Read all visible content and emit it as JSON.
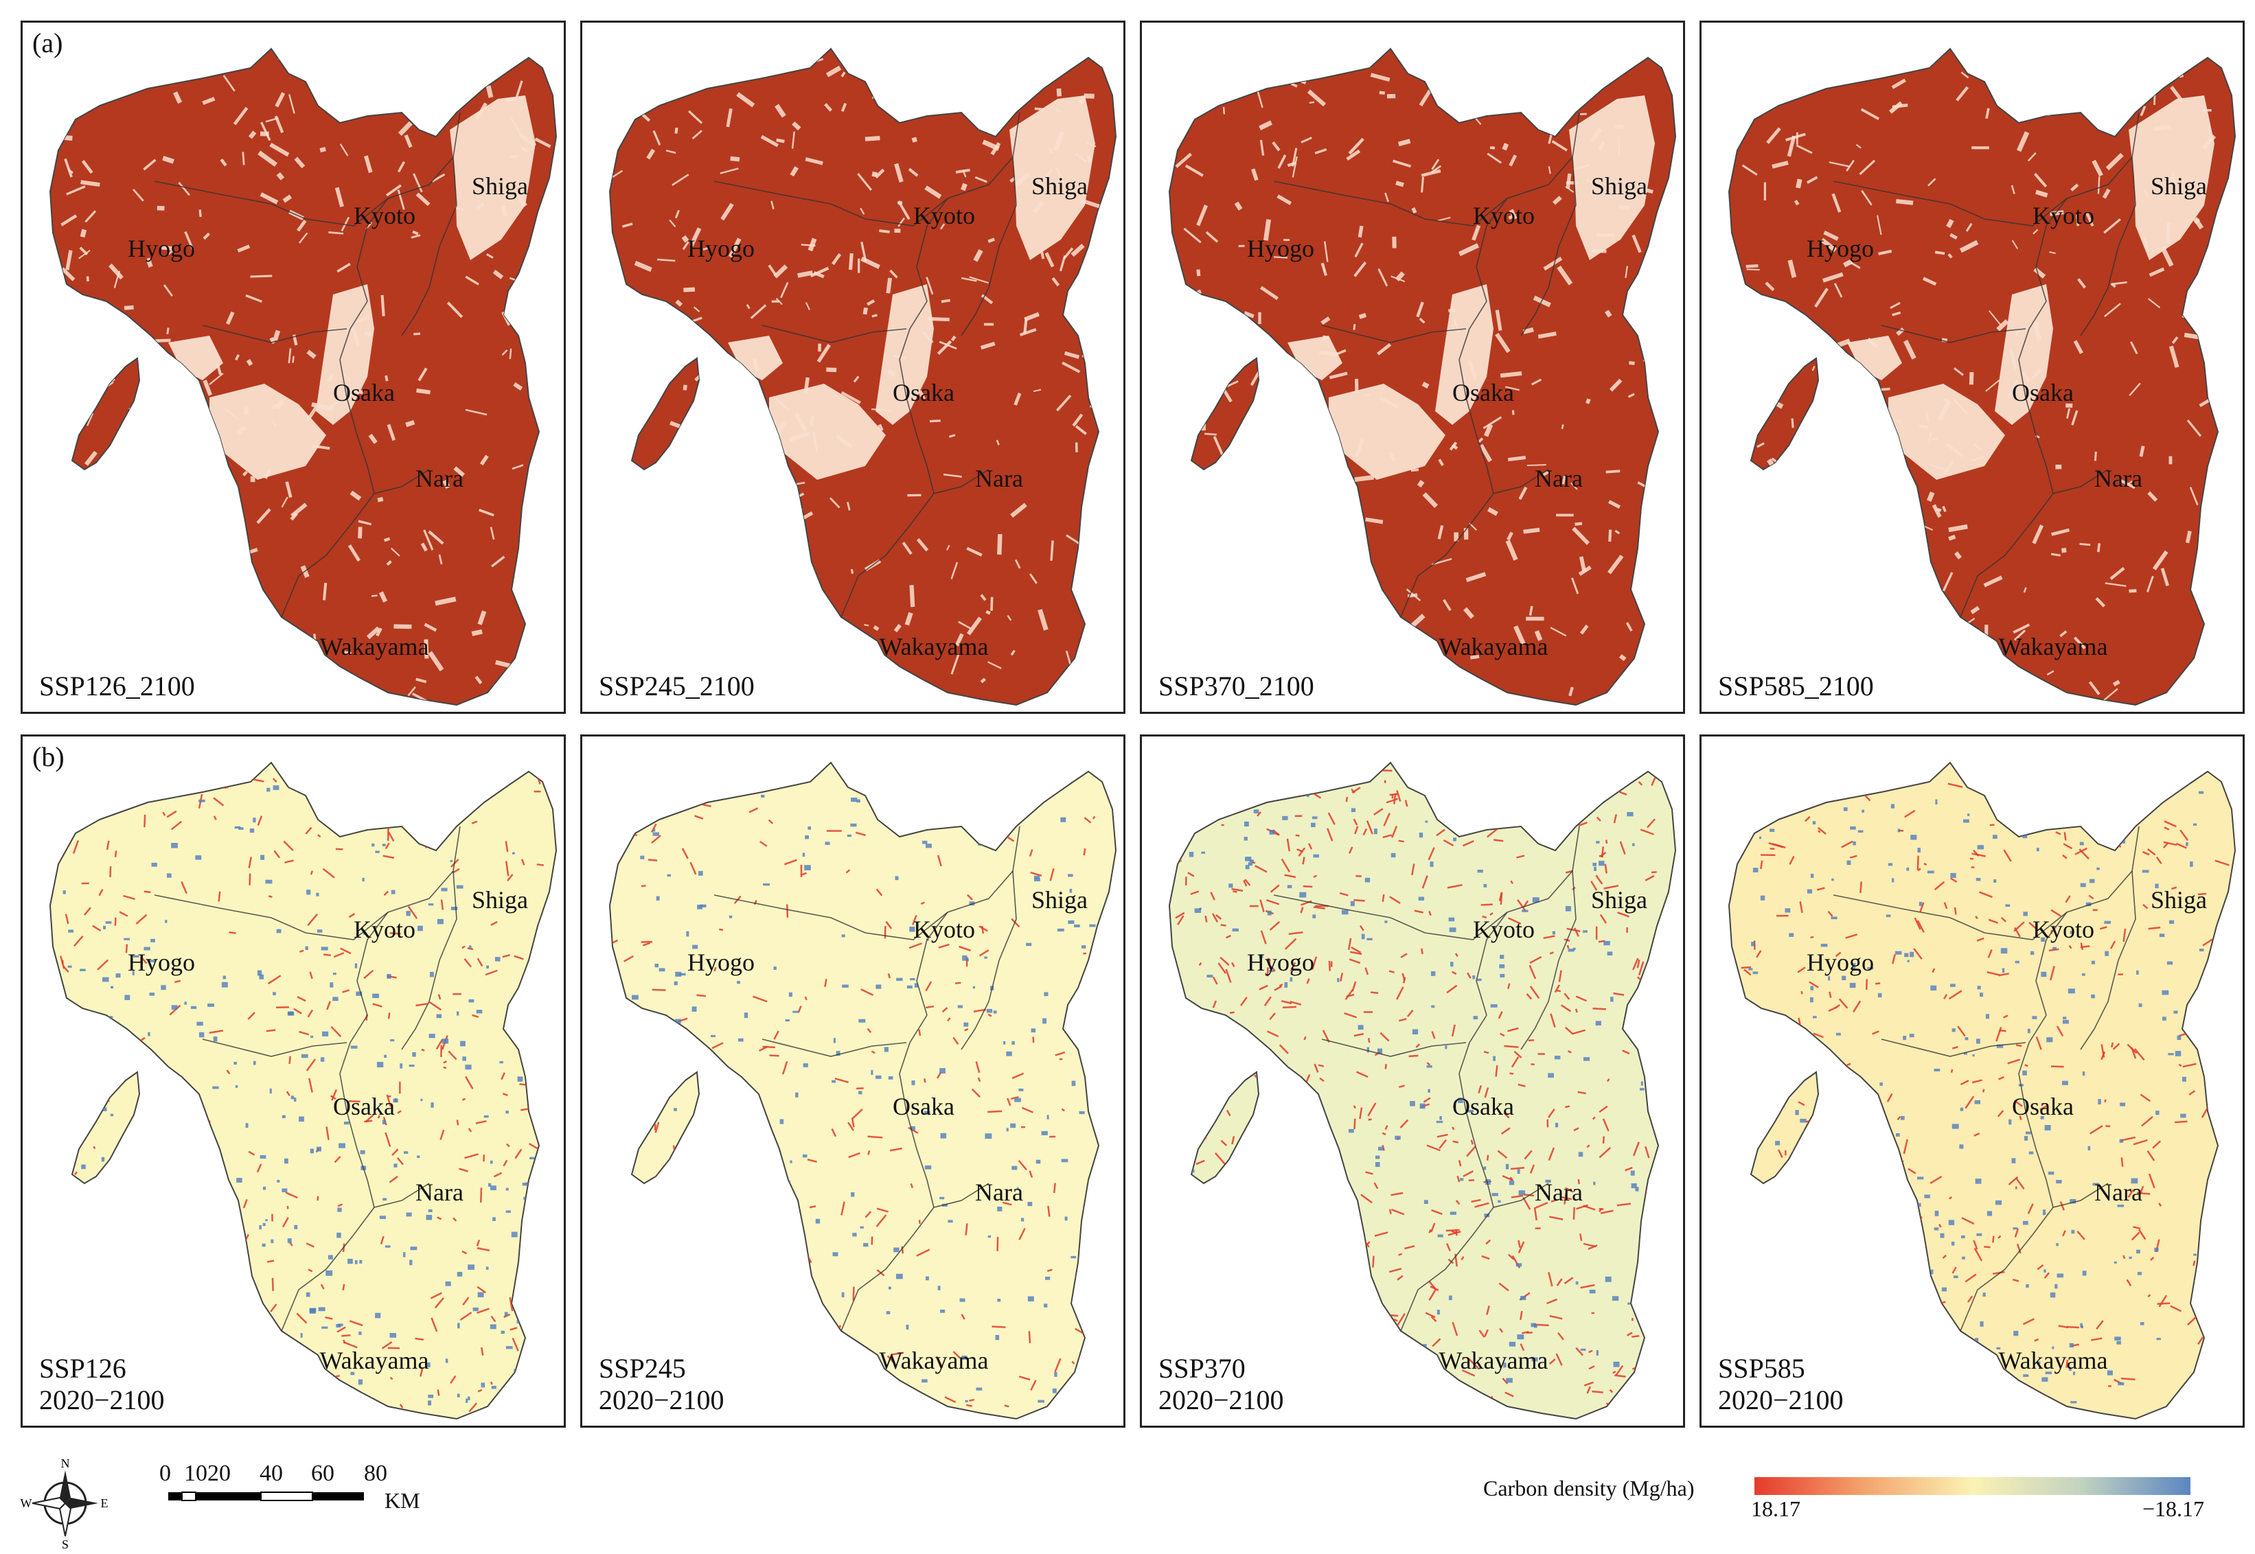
{
  "figure": {
    "panel_a_tag": "(a)",
    "panel_b_tag": "(b)",
    "regions": [
      "Shiga",
      "Kyoto",
      "Hyogo",
      "Osaka",
      "Nara",
      "Wakayama"
    ],
    "row_a": [
      {
        "caption": "SSP126_2100"
      },
      {
        "caption": "SSP245_2100"
      },
      {
        "caption": "SSP370_2100"
      },
      {
        "caption": "SSP585_2100"
      }
    ],
    "row_b": [
      {
        "scenario": "SSP126",
        "period": "2020−2100",
        "base_color": "#fbf6c0",
        "red_level": 0.35,
        "blue_level": 0.55
      },
      {
        "scenario": "SSP245",
        "period": "2020−2100",
        "base_color": "#fbf6c3",
        "red_level": 0.2,
        "blue_level": 0.35
      },
      {
        "scenario": "SSP370",
        "period": "2020−2100",
        "base_color": "#eef1c4",
        "red_level": 0.9,
        "blue_level": 0.25
      },
      {
        "scenario": "SSP585",
        "period": "2020−2100",
        "base_color": "#fcedb3",
        "red_level": 0.4,
        "blue_level": 0.45
      }
    ],
    "colors": {
      "carbon_dark": "#b4391f",
      "carbon_light": "#fae0cf",
      "loss_red": "#e2392a",
      "gain_blue": "#4f7dc0"
    }
  },
  "compass": {
    "n": "N",
    "s": "S",
    "e": "E",
    "w": "W"
  },
  "scalebar": {
    "ticks": [
      "0",
      "10",
      "20",
      "40",
      "60",
      "80"
    ],
    "unit": "KM"
  },
  "legend": {
    "title": "Carbon density (Mg/ha)",
    "min_label": "18.17",
    "max_label": "−18.17"
  }
}
